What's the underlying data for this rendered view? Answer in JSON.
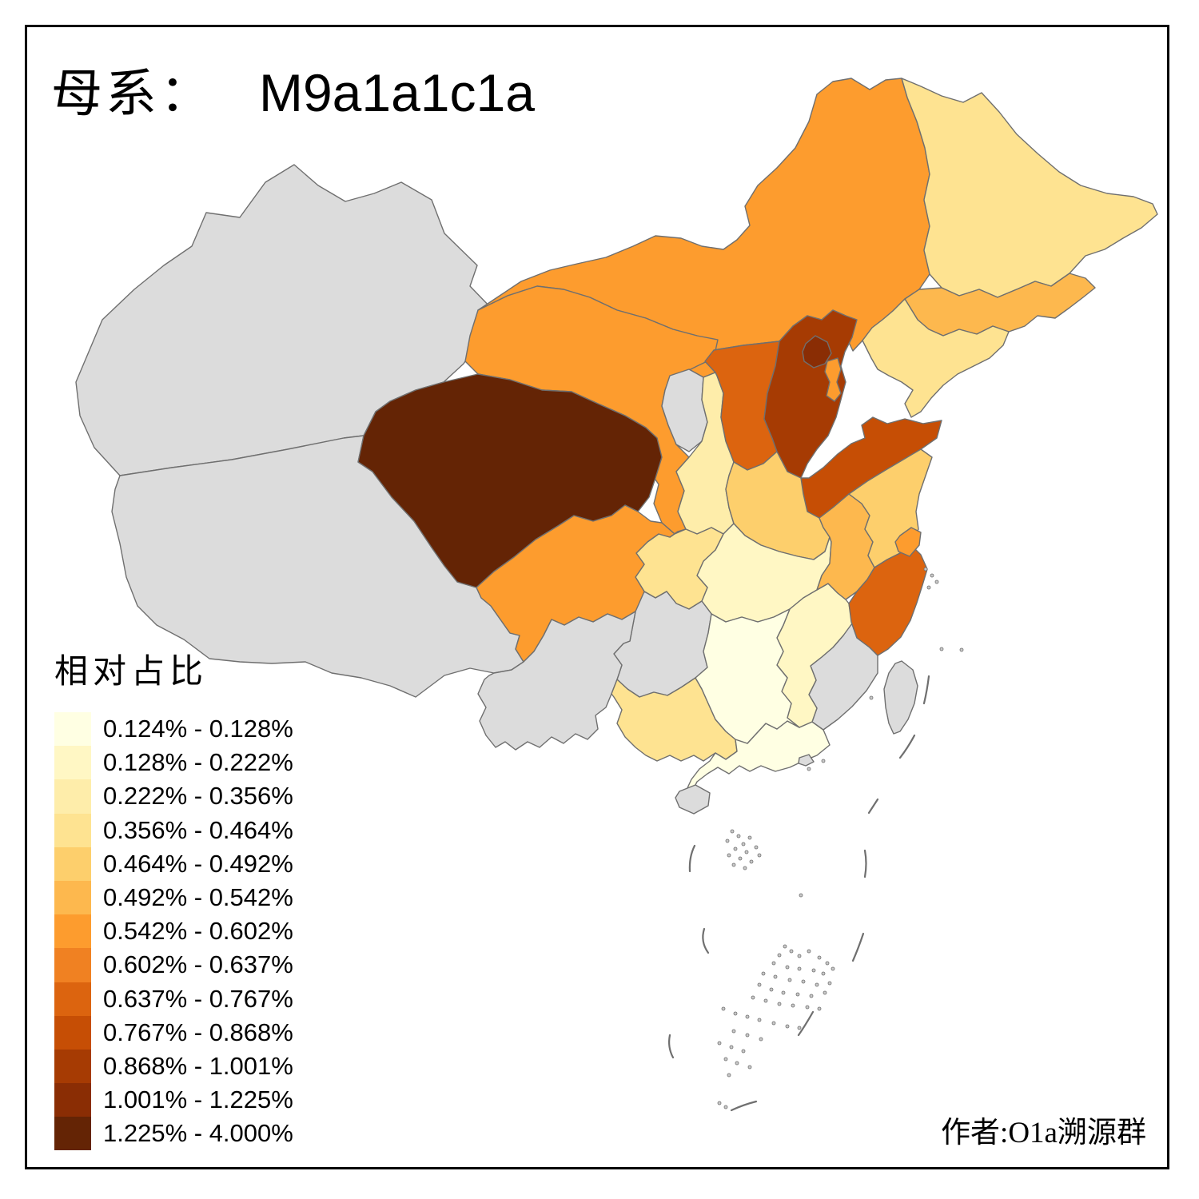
{
  "title": {
    "prefix": "母系：",
    "haplogroup": "M9a1a1c1a"
  },
  "legend": {
    "title": "相对占比",
    "bins": [
      {
        "label": "0.124% - 0.128%",
        "color": "#FFFFE3"
      },
      {
        "label": "0.128% - 0.222%",
        "color": "#FFF7C4"
      },
      {
        "label": "0.222% - 0.356%",
        "color": "#FEEDAA"
      },
      {
        "label": "0.356% - 0.464%",
        "color": "#FEE391"
      },
      {
        "label": "0.464% - 0.492%",
        "color": "#FDCF6C"
      },
      {
        "label": "0.492% - 0.542%",
        "color": "#FDB84E"
      },
      {
        "label": "0.542% - 0.602%",
        "color": "#FD9C2E"
      },
      {
        "label": "0.602% - 0.637%",
        "color": "#F08122"
      },
      {
        "label": "0.637% - 0.767%",
        "color": "#DC640F"
      },
      {
        "label": "0.767% - 0.868%",
        "color": "#C64E05"
      },
      {
        "label": "0.868% - 1.001%",
        "color": "#A63B03"
      },
      {
        "label": "1.001% - 1.225%",
        "color": "#8A2D04"
      },
      {
        "label": "1.225% - 4.000%",
        "color": "#642405"
      }
    ]
  },
  "credit": "作者:O1a溯源群",
  "chart_data": {
    "type": "choropleth-map",
    "title": "母系： M9a1a1c1a",
    "legend_title": "相对占比",
    "value_bins": [
      "0.124% - 0.128%",
      "0.128% - 0.222%",
      "0.222% - 0.356%",
      "0.356% - 0.464%",
      "0.464% - 0.492%",
      "0.492% - 0.542%",
      "0.542% - 0.602%",
      "0.602% - 0.637%",
      "0.637% - 0.767%",
      "0.767% - 0.868%",
      "0.868% - 1.001%",
      "1.001% - 1.225%",
      "1.225% - 4.000%"
    ],
    "regions": [
      {
        "id": "qinghai",
        "bin": 13
      },
      {
        "id": "beijing",
        "bin": 12
      },
      {
        "id": "hebei",
        "bin": 11
      },
      {
        "id": "shandong",
        "bin": 10
      },
      {
        "id": "shanxi",
        "bin": 9
      },
      {
        "id": "zhejiang",
        "bin": 9
      },
      {
        "id": "gansu",
        "bin": 7
      },
      {
        "id": "inner-mongolia",
        "bin": 7
      },
      {
        "id": "sichuan",
        "bin": 7
      },
      {
        "id": "tianjin",
        "bin": 7
      },
      {
        "id": "shanghai",
        "bin": 7
      },
      {
        "id": "anhui",
        "bin": 6
      },
      {
        "id": "jilin",
        "bin": 6
      },
      {
        "id": "henan",
        "bin": 5
      },
      {
        "id": "jiangsu",
        "bin": 5
      },
      {
        "id": "heilongjiang",
        "bin": 4
      },
      {
        "id": "liaoning",
        "bin": 4
      },
      {
        "id": "chongqing",
        "bin": 4
      },
      {
        "id": "guangxi",
        "bin": 4
      },
      {
        "id": "shaanxi",
        "bin": 3
      },
      {
        "id": "hubei",
        "bin": 2
      },
      {
        "id": "jiangxi",
        "bin": 2
      },
      {
        "id": "hunan",
        "bin": 1
      },
      {
        "id": "guangdong",
        "bin": 1
      },
      {
        "id": "xinjiang",
        "bin": null
      },
      {
        "id": "tibet",
        "bin": null
      },
      {
        "id": "ningxia",
        "bin": null
      },
      {
        "id": "guizhou",
        "bin": null
      },
      {
        "id": "yunnan",
        "bin": null
      },
      {
        "id": "fujian",
        "bin": null
      },
      {
        "id": "hainan",
        "bin": null
      },
      {
        "id": "taiwan",
        "bin": null
      },
      {
        "id": "hongkong",
        "bin": null
      }
    ]
  },
  "map": {
    "no_data_color": "#DCDCDC",
    "border_color": "#6F6F6F",
    "sea_color": "#FFFFFF",
    "frame_color": "#000000",
    "provinces": [
      {
        "id": "xinjiang",
        "bin": null
      },
      {
        "id": "tibet",
        "bin": null
      },
      {
        "id": "inner-mongolia",
        "bin": 7
      },
      {
        "id": "gansu",
        "bin": 7
      },
      {
        "id": "qinghai",
        "bin": 13
      },
      {
        "id": "ningxia",
        "bin": null
      },
      {
        "id": "shaanxi",
        "bin": 3
      },
      {
        "id": "shanxi",
        "bin": 9
      },
      {
        "id": "hebei",
        "bin": 11
      },
      {
        "id": "shandong",
        "bin": 10
      },
      {
        "id": "henan",
        "bin": 5
      },
      {
        "id": "hubei",
        "bin": 2
      },
      {
        "id": "chongqing",
        "bin": 4
      },
      {
        "id": "sichuan",
        "bin": 7
      },
      {
        "id": "guizhou",
        "bin": null
      },
      {
        "id": "yunnan",
        "bin": null
      },
      {
        "id": "guangxi",
        "bin": 4
      },
      {
        "id": "guangdong",
        "bin": 1
      },
      {
        "id": "fujian",
        "bin": null
      },
      {
        "id": "jiangxi",
        "bin": 2
      },
      {
        "id": "hunan",
        "bin": 1
      },
      {
        "id": "anhui",
        "bin": 6
      },
      {
        "id": "jiangsu",
        "bin": 5
      },
      {
        "id": "zhejiang",
        "bin": 9
      },
      {
        "id": "shanghai",
        "bin": 7
      },
      {
        "id": "taiwan",
        "bin": null
      },
      {
        "id": "hainan",
        "bin": null
      },
      {
        "id": "hongkong",
        "bin": null
      },
      {
        "id": "heilongjiang",
        "bin": 4
      },
      {
        "id": "jilin",
        "bin": 6
      },
      {
        "id": "liaoning",
        "bin": 4
      },
      {
        "id": "beijing",
        "bin": 12
      },
      {
        "id": "tianjin",
        "bin": 7
      }
    ]
  }
}
